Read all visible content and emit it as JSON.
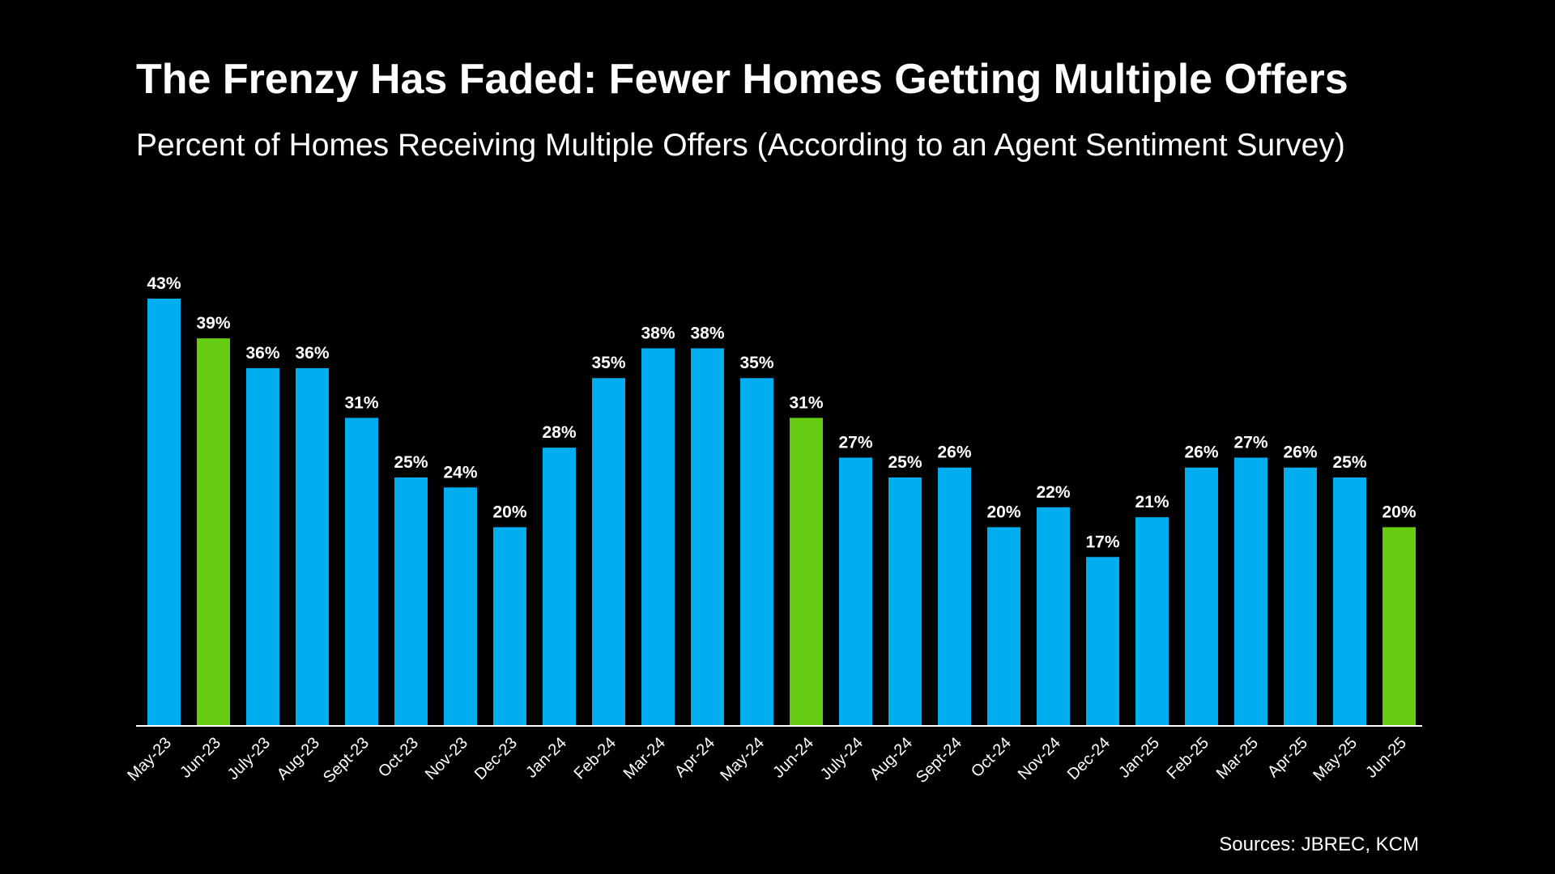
{
  "title": "The Frenzy Has Faded: Fewer Homes Getting Multiple Offers",
  "subtitle": "Percent of Homes Receiving Multiple Offers (According to an Agent Sentiment Survey)",
  "source": "Sources: JBREC, KCM",
  "colors": {
    "background": "#000000",
    "bar_default": "#00adef",
    "bar_highlight": "#66cc11",
    "text": "#ffffff",
    "axis": "#ffffff"
  },
  "chart_data": {
    "type": "bar",
    "title": "The Frenzy Has Faded: Fewer Homes Getting Multiple Offers",
    "subtitle": "Percent of Homes Receiving Multiple Offers (According to an Agent Sentiment Survey)",
    "xlabel": "",
    "ylabel": "",
    "ylim": [
      0,
      43
    ],
    "grid": false,
    "legend": "none",
    "categories": [
      "May-23",
      "Jun-23",
      "July-23",
      "Aug-23",
      "Sept-23",
      "Oct-23",
      "Nov-23",
      "Dec-23",
      "Jan-24",
      "Feb-24",
      "Mar-24",
      "Apr-24",
      "May-24",
      "Jun-24",
      "July-24",
      "Aug-24",
      "Sept-24",
      "Oct-24",
      "Nov-24",
      "Dec-24",
      "Jan-25",
      "Feb-25",
      "Mar-25",
      "Apr-25",
      "May-25",
      "Jun-25"
    ],
    "values": [
      43,
      39,
      36,
      36,
      31,
      25,
      24,
      20,
      28,
      35,
      38,
      38,
      35,
      31,
      27,
      25,
      26,
      20,
      22,
      17,
      21,
      26,
      27,
      26,
      25,
      20
    ],
    "labels": [
      "43%",
      "39%",
      "36%",
      "36%",
      "31%",
      "25%",
      "24%",
      "20%",
      "28%",
      "35%",
      "38%",
      "38%",
      "35%",
      "31%",
      "27%",
      "25%",
      "26%",
      "20%",
      "22%",
      "17%",
      "21%",
      "26%",
      "27%",
      "26%",
      "25%",
      "20%"
    ],
    "highlighted": [
      "Jun-23",
      "Jun-24",
      "Jun-25"
    ]
  }
}
